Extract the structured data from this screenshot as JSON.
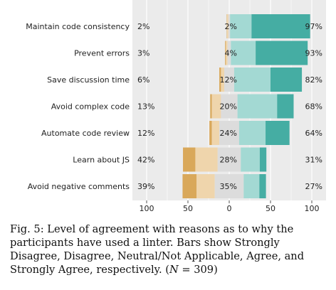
{
  "chart_data": {
    "type": "bar",
    "subtype": "diverging-stacked-likert",
    "categories": [
      "Maintain code consistency",
      "Prevent errors",
      "Save discussion time",
      "Avoid complex code",
      "Automate code review",
      "Learn about JS",
      "Avoid negative comments"
    ],
    "series": [
      {
        "name": "Strongly Disagree",
        "values": [
          0.5,
          1,
          2,
          2,
          3,
          15,
          17
        ]
      },
      {
        "name": "Disagree",
        "values": [
          1.5,
          2,
          4,
          11,
          9,
          27,
          22
        ]
      },
      {
        "name": "Neutral/Not Applicable",
        "values": [
          2,
          4,
          12,
          20,
          24,
          28,
          35
        ]
      },
      {
        "name": "Agree",
        "values": [
          26,
          30,
          44,
          48,
          32,
          23,
          19
        ]
      },
      {
        "name": "Strongly Agree",
        "values": [
          71,
          63,
          38,
          20,
          29,
          8,
          8
        ]
      }
    ],
    "left_percent": [
      "2%",
      "3%",
      "6%",
      "13%",
      "12%",
      "42%",
      "39%"
    ],
    "neutral_percent": [
      "2%",
      "4%",
      "12%",
      "20%",
      "24%",
      "28%",
      "35%"
    ],
    "right_percent": [
      "97%",
      "93%",
      "82%",
      "68%",
      "64%",
      "31%",
      "27%"
    ],
    "x_ticks": [
      "100",
      "50",
      "0",
      "50",
      "100"
    ],
    "xlim": [
      -100,
      100
    ],
    "grid": true,
    "colors": {
      "strongly_disagree": "#d9a85a",
      "disagree": "#efd5ac",
      "neutral": "#dcdcdc",
      "agree": "#a3d9d3",
      "strongly_agree": "#45ada3",
      "panel": "#ebebeb",
      "grid": "#ffffff"
    }
  },
  "caption": {
    "text": "Fig. 5: Level of agreement with reasons as to why the participants have used a linter. Bars show Strongly Disagree, Disagree, Neutral/Not Applicable, Agree, and Strongly Agree, respectively. (",
    "n_symbol": "N",
    "n_value": " = 309)"
  }
}
